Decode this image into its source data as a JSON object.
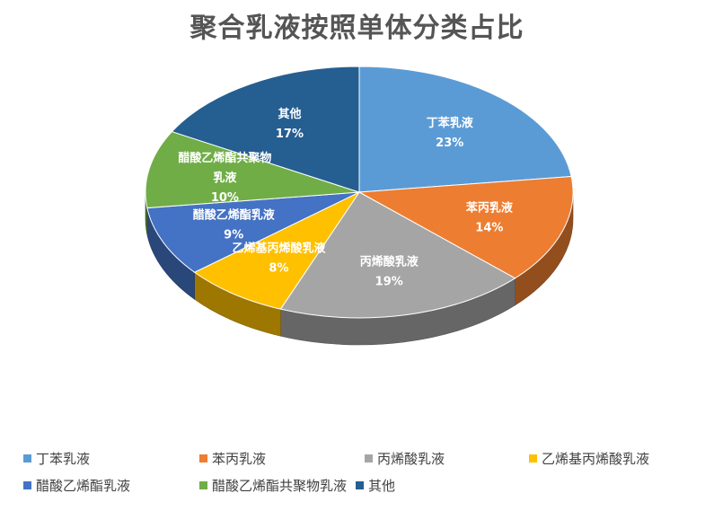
{
  "chart_data": {
    "type": "pie",
    "title": "聚合乳液按照单体分类占比",
    "categories": [
      "丁苯乳液",
      "苯丙乳液",
      "丙烯酸乳液",
      "乙烯基丙烯酸乳液",
      "醋酸乙烯酯乳液",
      "醋酸乙烯酯共聚物乳液",
      "其他"
    ],
    "values": [
      23,
      14,
      19,
      8,
      9,
      10,
      17
    ],
    "value_labels": [
      "23%",
      "14%",
      "19%",
      "8%",
      "9%",
      "10%",
      "17%"
    ],
    "colors": [
      "#5b9bd5",
      "#ed7d31",
      "#a5a5a5",
      "#ffc000",
      "#4472c4",
      "#70ad47",
      "#255e91"
    ],
    "legend_position": "bottom",
    "style": "3d-pie"
  }
}
